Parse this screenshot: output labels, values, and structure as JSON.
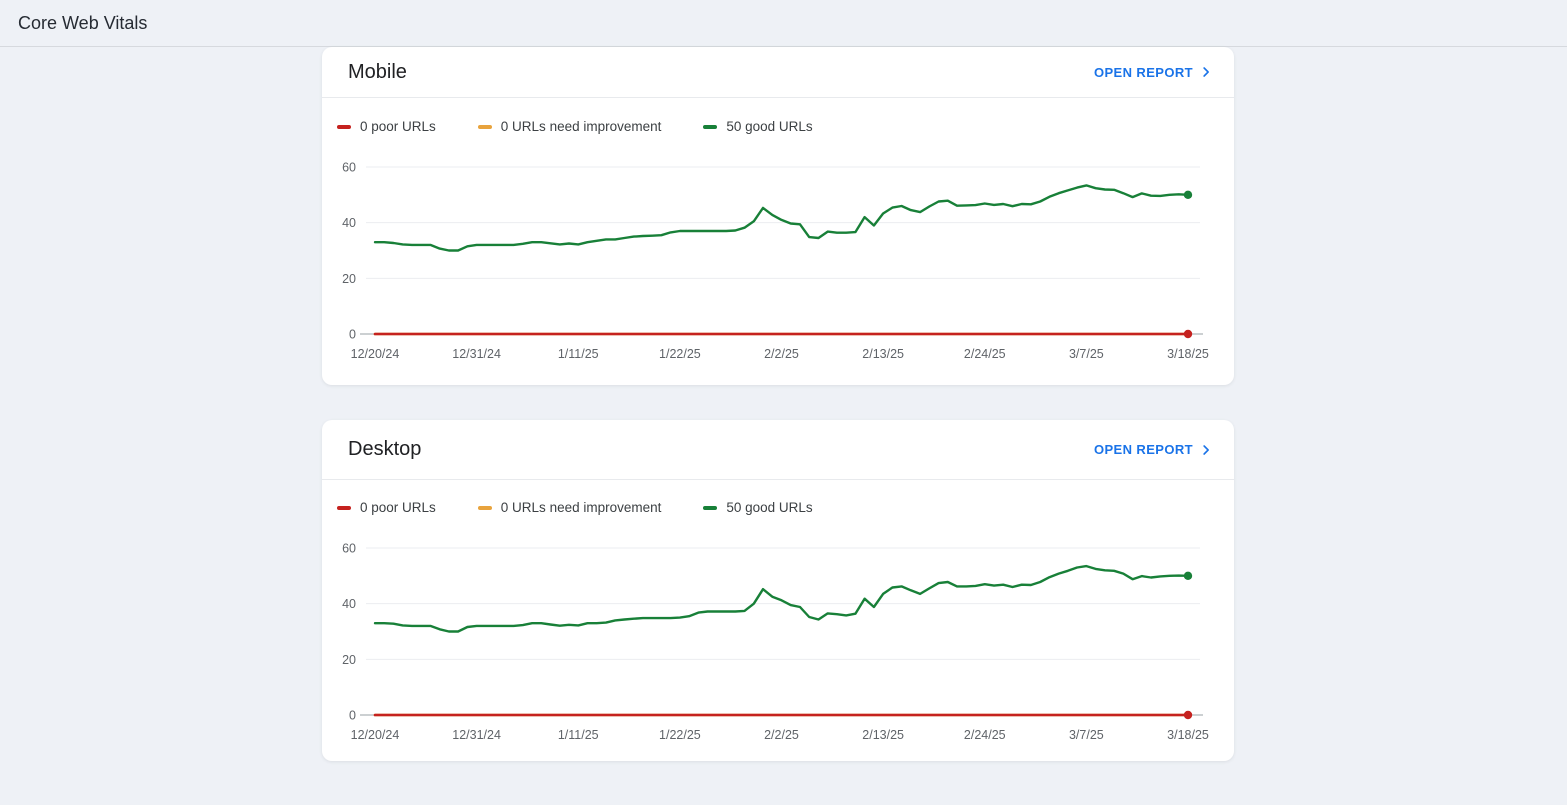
{
  "page": {
    "title": "Core Web Vitals"
  },
  "cards": [
    {
      "title": "Mobile",
      "open_report_label": "OPEN REPORT",
      "legend": [
        {
          "key": "poor",
          "label": "0 poor URLs",
          "color": "#c5221f"
        },
        {
          "key": "improve",
          "label": "0 URLs need improvement",
          "color": "#e8a33d"
        },
        {
          "key": "good",
          "label": "50 good URLs",
          "color": "#188038"
        }
      ]
    },
    {
      "title": "Desktop",
      "open_report_label": "OPEN REPORT",
      "legend": [
        {
          "key": "poor",
          "label": "0 poor URLs",
          "color": "#c5221f"
        },
        {
          "key": "improve",
          "label": "0 URLs need improvement",
          "color": "#e8a33d"
        },
        {
          "key": "good",
          "label": "50 good URLs",
          "color": "#188038"
        }
      ]
    }
  ],
  "chart_data": [
    {
      "type": "line",
      "device": "Mobile",
      "x_tick_labels": [
        "12/20/24",
        "12/31/24",
        "1/11/25",
        "1/22/25",
        "2/2/25",
        "2/13/25",
        "2/24/25",
        "3/7/25",
        "3/18/25"
      ],
      "x_tick_indices": [
        0,
        11,
        22,
        33,
        44,
        55,
        66,
        77,
        88
      ],
      "y_ticks": [
        0,
        20,
        40,
        60
      ],
      "ylim": [
        0,
        62
      ],
      "grid": "horizontal-light",
      "legend_position": "top",
      "draw_order": [
        1,
        0,
        2
      ],
      "series": [
        {
          "key": "poor",
          "name": "0 poor URLs",
          "color": "#c5221f",
          "end_dot": true,
          "values": {
            "constant": 0,
            "count": 89
          }
        },
        {
          "key": "improve",
          "name": "0 URLs need improvement",
          "color": "#e8a33d",
          "end_dot": false,
          "values": {
            "constant": 0,
            "count": 89
          }
        },
        {
          "key": "good",
          "name": "50 good URLs",
          "color": "#188038",
          "end_dot": true,
          "values": [
            33,
            33,
            32.7,
            32.2,
            32,
            32,
            32,
            30.7,
            30,
            30,
            31.5,
            32,
            32,
            32,
            32,
            32,
            32.4,
            33,
            33,
            32.6,
            32.2,
            32.5,
            32.2,
            33,
            33.5,
            34,
            34,
            34.5,
            35,
            35.2,
            35.3,
            35.5,
            36.5,
            37,
            37,
            37,
            37,
            37,
            37,
            37.2,
            38.2,
            40.5,
            45.3,
            42.8,
            41,
            39.7,
            39.4,
            34.8,
            34.5,
            36.8,
            36.4,
            36.4,
            36.6,
            42,
            39,
            43.3,
            45.4,
            46,
            44.5,
            43.8,
            45.8,
            47.6,
            47.9,
            46.1,
            46.2,
            46.3,
            46.9,
            46.4,
            46.7,
            45.9,
            46.7,
            46.6,
            47.6,
            49.3,
            50.6,
            51.6,
            52.6,
            53.4,
            52.4,
            51.9,
            51.8,
            50.6,
            49.2,
            50.5,
            49.7,
            49.6,
            50,
            50.2,
            50
          ]
        }
      ]
    },
    {
      "type": "line",
      "device": "Desktop",
      "x_tick_labels": [
        "12/20/24",
        "12/31/24",
        "1/11/25",
        "1/22/25",
        "2/2/25",
        "2/13/25",
        "2/24/25",
        "3/7/25",
        "3/18/25"
      ],
      "x_tick_indices": [
        0,
        11,
        22,
        33,
        44,
        55,
        66,
        77,
        88
      ],
      "y_ticks": [
        0,
        20,
        40,
        60
      ],
      "ylim": [
        0,
        62
      ],
      "grid": "horizontal-light",
      "legend_position": "top",
      "draw_order": [
        1,
        0,
        2
      ],
      "series": [
        {
          "key": "poor",
          "name": "0 poor URLs",
          "color": "#c5221f",
          "end_dot": true,
          "values": {
            "constant": 0,
            "count": 89
          }
        },
        {
          "key": "improve",
          "name": "0 URLs need improvement",
          "color": "#e8a33d",
          "end_dot": false,
          "values": {
            "constant": 0,
            "count": 89
          }
        },
        {
          "key": "good",
          "name": "50 good URLs",
          "color": "#188038",
          "end_dot": true,
          "values": [
            33,
            33,
            32.8,
            32.2,
            32,
            32,
            32,
            30.8,
            30,
            30,
            31.6,
            32,
            32,
            32,
            32,
            32,
            32.3,
            33,
            33,
            32.5,
            32.1,
            32.4,
            32.2,
            33,
            33,
            33.2,
            34,
            34.3,
            34.6,
            34.8,
            34.8,
            34.8,
            34.8,
            35,
            35.5,
            36.8,
            37.2,
            37.2,
            37.2,
            37.2,
            37.4,
            40,
            45.2,
            42.5,
            41.2,
            39.5,
            38.8,
            35.2,
            34.3,
            36.5,
            36.2,
            35.8,
            36.4,
            41.8,
            38.8,
            43.5,
            45.8,
            46.2,
            44.8,
            43.5,
            45.5,
            47.4,
            47.8,
            46.2,
            46.2,
            46.4,
            47,
            46.5,
            46.8,
            46,
            46.8,
            46.7,
            47.8,
            49.5,
            50.8,
            51.8,
            53,
            53.5,
            52.5,
            52,
            51.8,
            50.8,
            48.8,
            49.9,
            49.4,
            49.8,
            50,
            50.1,
            50
          ]
        }
      ]
    }
  ]
}
